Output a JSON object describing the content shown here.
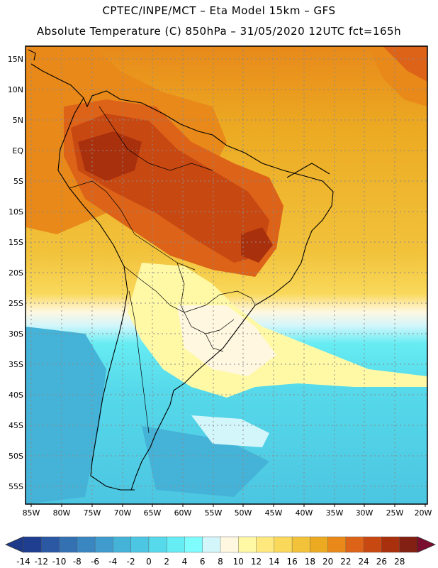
{
  "header": {
    "line1": "CPTEC/INPE/MCT –  Eta Model 15km – GFS",
    "line2": "Absolute Temperature (C) 850hPa – 31/05/2020 12UTC fct=165h"
  },
  "map": {
    "lat_labels": [
      "15N",
      "10N",
      "5N",
      "EQ",
      "5S",
      "10S",
      "15S",
      "20S",
      "25S",
      "30S",
      "35S",
      "40S",
      "45S",
      "50S",
      "55S"
    ],
    "lon_labels": [
      "85W",
      "80W",
      "75W",
      "70W",
      "65W",
      "60W",
      "55W",
      "50W",
      "45W",
      "40W",
      "35W",
      "30W",
      "25W",
      "20W"
    ],
    "region": "South America",
    "extent": {
      "lon_min": -85,
      "lon_max": -20,
      "lat_min": -57.5,
      "lat_max": 17
    }
  },
  "colorbar": {
    "labels": [
      "-14",
      "-12",
      "-10",
      "-8",
      "-6",
      "-4",
      "-2",
      "0",
      "2",
      "4",
      "6",
      "8",
      "10",
      "12",
      "14",
      "16",
      "18",
      "20",
      "22",
      "24",
      "26",
      "28"
    ],
    "colors": [
      "#1f3e8f",
      "#2b58a3",
      "#3471b3",
      "#3a86c0",
      "#3f9ccc",
      "#45b3d8",
      "#4cc6e2",
      "#56d9ea",
      "#66ecf3",
      "#7ffcfd",
      "#d3f6fb",
      "#fff7e0",
      "#fff9a6",
      "#ffe97e",
      "#f9d85a",
      "#f2c23b",
      "#ecaa22",
      "#e8891a",
      "#dc6318",
      "#c84812",
      "#a9300d",
      "#822014"
    ],
    "under_color": "#1e3a8a",
    "over_color": "#7b0d2e"
  }
}
